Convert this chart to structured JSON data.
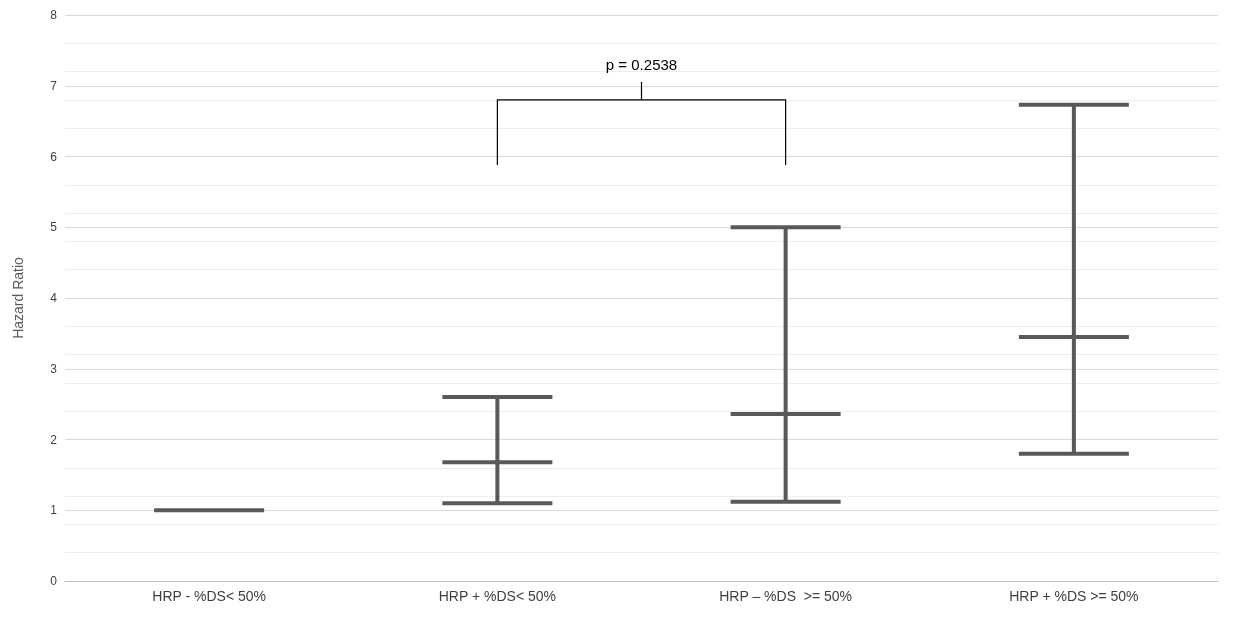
{
  "chart_data": {
    "type": "box",
    "ylabel": "Hazard Ratio",
    "categories": [
      "HRP - %DS< 50%",
      "HRP + %DS< 50%",
      "HRP – %DS  >= 50%",
      "HRP + %DS >= 50%"
    ],
    "boxes": [
      {
        "low": 1.0,
        "q1": 1.0,
        "median": 1.0,
        "q3": 1.0,
        "high": 1.0
      },
      {
        "low": 1.1,
        "q1": 1.68,
        "median": 1.68,
        "q3": 1.68,
        "high": 2.6
      },
      {
        "low": 1.12,
        "q1": 2.36,
        "median": 2.36,
        "q3": 2.36,
        "high": 5.0
      },
      {
        "low": 1.8,
        "q1": 3.45,
        "median": 3.45,
        "q3": 3.45,
        "high": 6.73
      }
    ],
    "color": "#595959",
    "ylim": [
      0,
      8
    ],
    "yticks": [
      0,
      1,
      2,
      3,
      4,
      5,
      6,
      7,
      8
    ],
    "grid": true,
    "annotations": [
      "p = 0.2538"
    ]
  }
}
